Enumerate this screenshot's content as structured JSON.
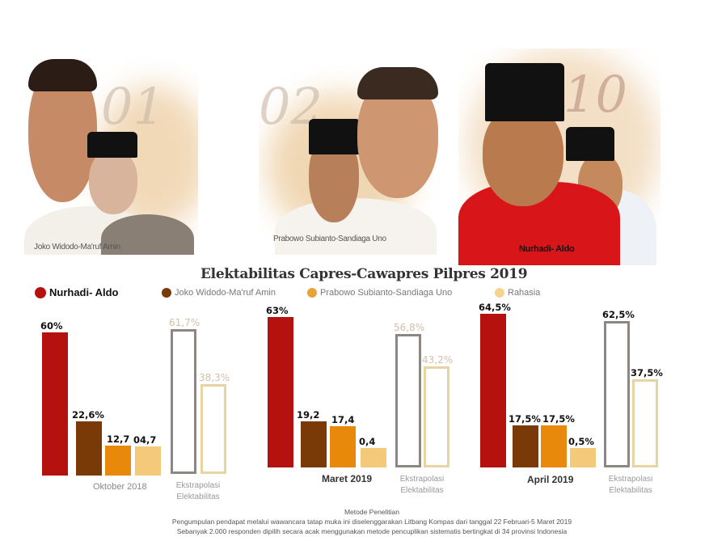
{
  "photos": {
    "pair1": {
      "number": "01",
      "label": "Joko Widodo-Ma'ruf Amin"
    },
    "pair2": {
      "number": "02",
      "label": "Prabowo Subianto-Sandiaga Uno"
    },
    "pair3": {
      "number": "10",
      "label": "Nurhadi- Aldo"
    }
  },
  "chart_data": {
    "type": "bar",
    "title": "Elektabilitas Capres-Cawapres Pilpres 2019",
    "legend": [
      {
        "name": "Nurhadi- Aldo",
        "color": "#b5120f"
      },
      {
        "name": "Joko Widodo-Ma'ruf Amin",
        "color": "#7a3a08"
      },
      {
        "name": "Prabowo Subianto-Sandiaga Uno",
        "color": "#e8890c"
      },
      {
        "name": "Rahasia",
        "color": "#f5c97a"
      }
    ],
    "groups": [
      {
        "category": "Oktober 2018",
        "values": [
          60,
          22.6,
          12.7,
          4.7
        ],
        "labels": [
          "60%",
          "22,6%",
          "12,7",
          "04,7"
        ],
        "extrapolation": {
          "label": "Ekstrapolasi Elektabilitas",
          "values": [
            61.7,
            38.3
          ],
          "labels": [
            "61,7%",
            "38,3%"
          ]
        }
      },
      {
        "category": "Maret 2019",
        "values": [
          63,
          19.2,
          17.4,
          0.4
        ],
        "labels": [
          "63%",
          "19,2",
          "17,4",
          "0,4"
        ],
        "extrapolation": {
          "label": "Ekstrapolasi Elektabilitas",
          "values": [
            56.8,
            43.2
          ],
          "labels": [
            "56,8%",
            "43,2%"
          ]
        }
      },
      {
        "category": "April 2019",
        "values": [
          64.5,
          17.5,
          17.5,
          0.5
        ],
        "labels": [
          "64,5%",
          "17,5%",
          "17,5%",
          "0,5%"
        ],
        "extrapolation": {
          "label": "Ekstrapolasi Elektabilitas",
          "values": [
            62.5,
            37.5
          ],
          "labels": [
            "62,5%",
            "37,5%"
          ]
        }
      }
    ],
    "extrapolation_colors": [
      "#8c8782",
      "#e8d3a4"
    ],
    "grid": false,
    "legend_position": "top"
  },
  "footer": {
    "heading": "Metode Penelitian",
    "line1": "Pengumpulan pendapat melalui wawancara tatap muka ini diselenggarakan Litbang Kompas dari tanggal 22 Februari-5 Maret 2019",
    "line2": "Sebanyak 2.000 responden dipilih secara acak menggunakan metode pencuplikan sistematis bertingkat di 34 provinsi Indonesia"
  }
}
